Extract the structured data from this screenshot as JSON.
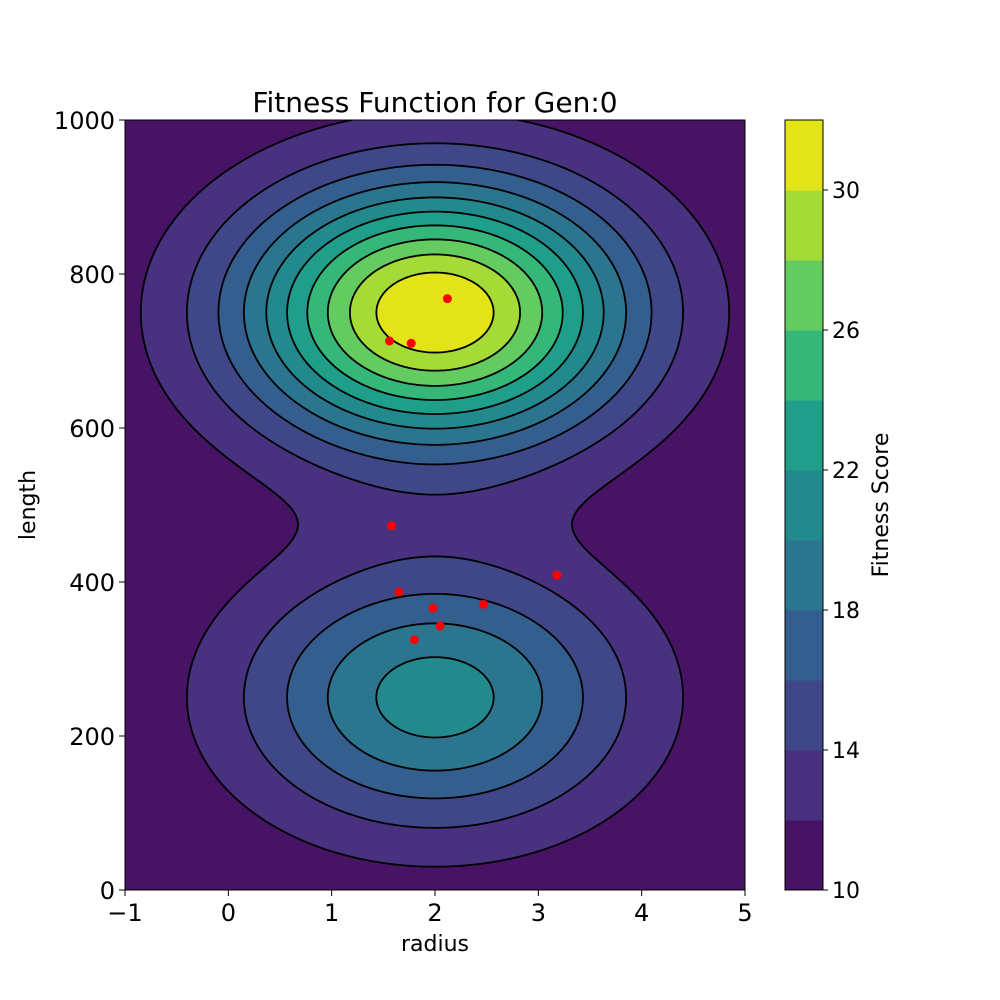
{
  "chart_data": {
    "type": "contour",
    "title": "Fitness Function for Gen:0",
    "xlabel": "radius",
    "ylabel": "length",
    "xlim": [
      -1,
      5
    ],
    "ylim": [
      0,
      1000
    ],
    "x_ticks": [
      "−1",
      "0",
      "1",
      "2",
      "3",
      "4",
      "5"
    ],
    "x_tick_values": [
      -1,
      0,
      1,
      2,
      3,
      4,
      5
    ],
    "y_ticks": [
      "0",
      "200",
      "400",
      "600",
      "800",
      "1000"
    ],
    "y_tick_values": [
      0,
      200,
      400,
      600,
      800,
      1000
    ],
    "grid": false,
    "colormap": "viridis",
    "point_color": "#ff0000",
    "contour_line_color": "#000000",
    "levels": [
      10,
      12,
      14,
      16,
      18,
      20,
      22,
      24,
      26,
      28,
      30,
      32
    ],
    "level_colors": [
      "#471365",
      "#48317e",
      "#3f4788",
      "#345e8d",
      "#2b758e",
      "#228a8d",
      "#1f9e89",
      "#35b779",
      "#63cb5f",
      "#a5db36",
      "#e2e418"
    ],
    "colorbar": {
      "label": "Fitness Score",
      "range": [
        10,
        32
      ],
      "ticks": [
        "10",
        "14",
        "18",
        "22",
        "26",
        "30"
      ],
      "tick_values": [
        10,
        14,
        18,
        22,
        26,
        30
      ]
    },
    "peaks": [
      {
        "center": [
          2,
          750
        ],
        "max_value": 32
      },
      {
        "center": [
          2,
          250
        ],
        "max_value": 21
      }
    ],
    "points": [
      {
        "x": 2.12,
        "y": 768
      },
      {
        "x": 1.56,
        "y": 713
      },
      {
        "x": 1.77,
        "y": 710
      },
      {
        "x": 1.58,
        "y": 473
      },
      {
        "x": 3.18,
        "y": 409
      },
      {
        "x": 1.65,
        "y": 387
      },
      {
        "x": 1.98,
        "y": 366
      },
      {
        "x": 2.47,
        "y": 371
      },
      {
        "x": 2.05,
        "y": 343
      },
      {
        "x": 1.8,
        "y": 325
      }
    ]
  }
}
